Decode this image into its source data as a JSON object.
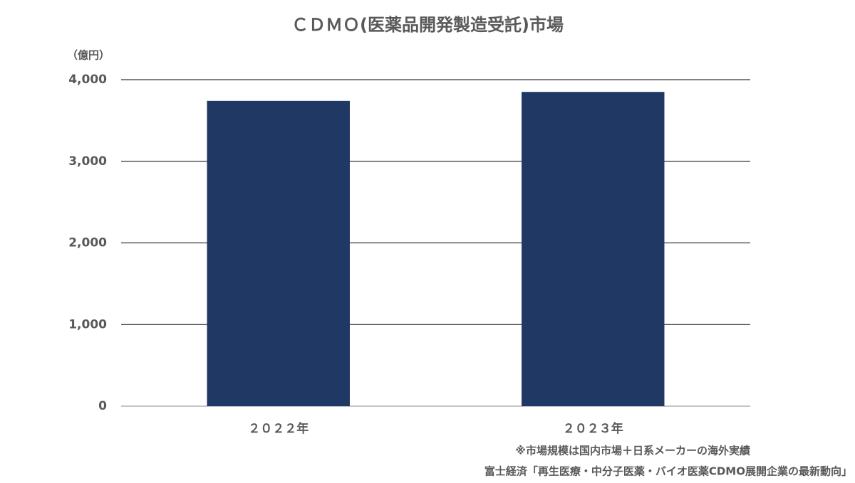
{
  "chart_data": {
    "type": "bar",
    "title": "ＣＤＭＯ(医薬品開発製造受託)市場",
    "y_axis_label": "（億円）",
    "categories": [
      "２０２２年",
      "２０２３年"
    ],
    "values": [
      3740,
      3850
    ],
    "color": "#203864",
    "ylim": [
      0,
      4000
    ],
    "yticks": [
      0,
      {
        "value": 1000,
        "label": "1,000"
      },
      {
        "value": 2000,
        "label": "2,000"
      },
      {
        "value": 3000,
        "label": "3,000"
      },
      {
        "value": 4000,
        "label": "4,000"
      }
    ],
    "grid": true,
    "notes": [
      "※市場規模は国内市場＋日系メーカーの海外実績",
      "富士経済「再生医療・中分子医薬・バイオ医薬CDMO展開企業の最新動向」"
    ]
  }
}
